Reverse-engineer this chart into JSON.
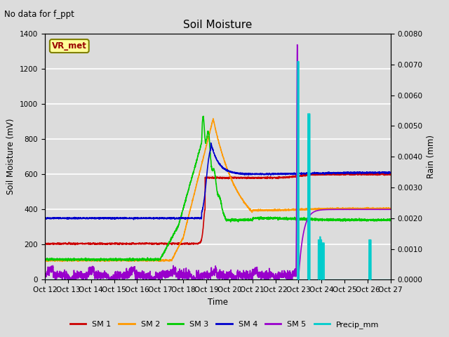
{
  "title": "Soil Moisture",
  "annotation_text": "No data for f_ppt",
  "xlabel": "Time",
  "ylabel_left": "Soil Moisture (mV)",
  "ylabel_right": "Rain (mm)",
  "ylim_left": [
    0,
    1400
  ],
  "ylim_right": [
    0,
    0.008
  ],
  "yticks_left": [
    0,
    200,
    400,
    600,
    800,
    1000,
    1200,
    1400
  ],
  "yticks_right": [
    0.0,
    0.001,
    0.002,
    0.003,
    0.004,
    0.005,
    0.006,
    0.007,
    0.008
  ],
  "xtick_labels": [
    "Oct 12",
    "Oct 13",
    "Oct 14",
    "Oct 15",
    "Oct 16",
    "Oct 17",
    "Oct 18",
    "Oct 19",
    "Oct 20",
    "Oct 21",
    "Oct 22",
    "Oct 23",
    "Oct 24",
    "Oct 25",
    "Oct 26",
    "Oct 27"
  ],
  "legend_labels": [
    "SM 1",
    "SM 2",
    "SM 3",
    "SM 4",
    "SM 5",
    "Precip_mm"
  ],
  "legend_colors": [
    "#cc0000",
    "#ff9900",
    "#00cc00",
    "#0000cc",
    "#9900cc",
    "#00cccc"
  ],
  "background_color": "#dcdcdc",
  "plot_bg_color": "#dcdcdc",
  "grid_color": "#ffffff",
  "sm1_color": "#cc0000",
  "sm2_color": "#ff9900",
  "sm3_color": "#00cc00",
  "sm4_color": "#0000cc",
  "sm5_color": "#9900cc",
  "precip_color": "#00cccc",
  "vr_met_label": "VR_met",
  "vr_met_facecolor": "#ffff99",
  "vr_met_edgecolor": "#808000",
  "vr_met_textcolor": "#990000"
}
